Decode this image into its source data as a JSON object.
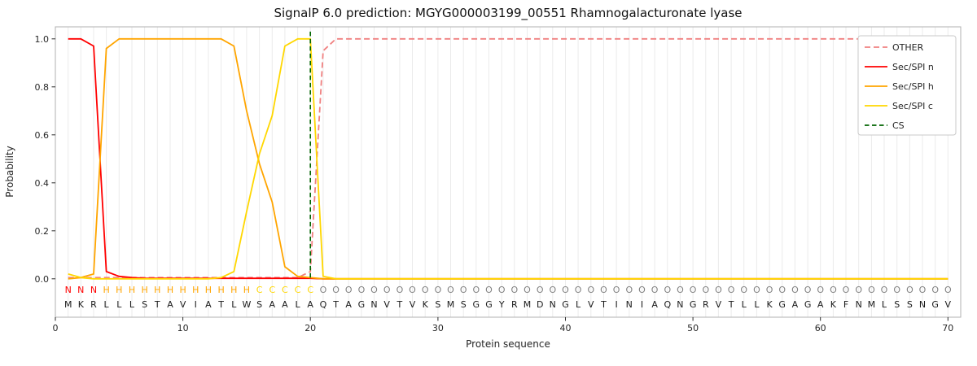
{
  "chart_data": {
    "type": "line",
    "title": "SignalP 6.0 prediction: MGYG000003199_00551 Rhamnogalacturonate lyase",
    "xlabel": "Protein sequence",
    "ylabel": "Probability",
    "xlim": [
      0,
      71
    ],
    "ylim": [
      -0.16,
      1.05
    ],
    "x_start": 1,
    "x_ticks": [
      0,
      10,
      20,
      30,
      40,
      50,
      60,
      70
    ],
    "y_ticks": [
      {
        "value": 0.0,
        "label": "0.0"
      },
      {
        "value": 0.2,
        "label": "0.2"
      },
      {
        "value": 0.4,
        "label": "0.4"
      },
      {
        "value": 0.6,
        "label": "0.6"
      },
      {
        "value": 0.8,
        "label": "0.8"
      },
      {
        "value": 1.0,
        "label": "1.0"
      }
    ],
    "grid": "vertical-line-per-residue",
    "legend_position": "upper right",
    "series": [
      {
        "name": "OTHER",
        "color": "#f08080",
        "style": "dashed",
        "values": [
          0.005,
          0.005,
          0.005,
          0.005,
          0.005,
          0.005,
          0.005,
          0.005,
          0.005,
          0.005,
          0.005,
          0.005,
          0.005,
          0.005,
          0.005,
          0.005,
          0.005,
          0.005,
          0.005,
          0.03,
          0.95,
          1.0,
          1.0,
          1.0,
          1.0,
          1.0,
          1.0,
          1.0,
          1.0,
          1.0,
          1.0,
          1.0,
          1.0,
          1.0,
          1.0,
          1.0,
          1.0,
          1.0,
          1.0,
          1.0,
          1.0,
          1.0,
          1.0,
          1.0,
          1.0,
          1.0,
          1.0,
          1.0,
          1.0,
          1.0,
          1.0,
          1.0,
          1.0,
          1.0,
          1.0,
          1.0,
          1.0,
          1.0,
          1.0,
          1.0,
          1.0,
          1.0,
          1.0,
          1.0,
          1.0,
          1.0,
          1.0,
          1.0,
          1.0,
          1.0
        ]
      },
      {
        "name": "Sec/SPI n",
        "color": "#ff0000",
        "style": "solid",
        "values": [
          1.0,
          1.0,
          0.97,
          0.03,
          0.01,
          0.005,
          0.002,
          0.002,
          0.002,
          0.002,
          0.002,
          0.002,
          0.002,
          0.002,
          0.002,
          0.002,
          0.002,
          0.002,
          0.002,
          0.002,
          0.0,
          0.0,
          0.0,
          0.0,
          0.0,
          0.0,
          0.0,
          0.0,
          0.0,
          0.0,
          0.0,
          0.0,
          0.0,
          0.0,
          0.0,
          0.0,
          0.0,
          0.0,
          0.0,
          0.0,
          0.0,
          0.0,
          0.0,
          0.0,
          0.0,
          0.0,
          0.0,
          0.0,
          0.0,
          0.0,
          0.0,
          0.0,
          0.0,
          0.0,
          0.0,
          0.0,
          0.0,
          0.0,
          0.0,
          0.0,
          0.0,
          0.0,
          0.0,
          0.0,
          0.0,
          0.0,
          0.0,
          0.0,
          0.0,
          0.0
        ]
      },
      {
        "name": "Sec/SPI h",
        "color": "#ffa500",
        "style": "solid",
        "values": [
          0.0,
          0.005,
          0.02,
          0.96,
          1.0,
          1.0,
          1.0,
          1.0,
          1.0,
          1.0,
          1.0,
          1.0,
          1.0,
          0.97,
          0.7,
          0.48,
          0.32,
          0.05,
          0.01,
          0.005,
          0.0,
          0.0,
          0.0,
          0.0,
          0.0,
          0.0,
          0.0,
          0.0,
          0.0,
          0.0,
          0.0,
          0.0,
          0.0,
          0.0,
          0.0,
          0.0,
          0.0,
          0.0,
          0.0,
          0.0,
          0.0,
          0.0,
          0.0,
          0.0,
          0.0,
          0.0,
          0.0,
          0.0,
          0.0,
          0.0,
          0.0,
          0.0,
          0.0,
          0.0,
          0.0,
          0.0,
          0.0,
          0.0,
          0.0,
          0.0,
          0.0,
          0.0,
          0.0,
          0.0,
          0.0,
          0.0,
          0.0,
          0.0,
          0.0,
          0.0
        ]
      },
      {
        "name": "Sec/SPI c",
        "color": "#ffd700",
        "style": "solid",
        "values": [
          0.02,
          0.005,
          0.0,
          0.0,
          0.0,
          0.0,
          0.0,
          0.0,
          0.0,
          0.0,
          0.0,
          0.0,
          0.005,
          0.03,
          0.28,
          0.52,
          0.68,
          0.97,
          1.0,
          1.0,
          0.01,
          0.0,
          0.0,
          0.0,
          0.0,
          0.0,
          0.0,
          0.0,
          0.0,
          0.0,
          0.0,
          0.0,
          0.0,
          0.0,
          0.0,
          0.0,
          0.0,
          0.0,
          0.0,
          0.0,
          0.0,
          0.0,
          0.0,
          0.0,
          0.0,
          0.0,
          0.0,
          0.0,
          0.0,
          0.0,
          0.0,
          0.0,
          0.0,
          0.0,
          0.0,
          0.0,
          0.0,
          0.0,
          0.0,
          0.0,
          0.0,
          0.0,
          0.0,
          0.0,
          0.0,
          0.0,
          0.0,
          0.0,
          0.0,
          0.0
        ]
      },
      {
        "name": "CS",
        "color": "#006400",
        "style": "dashed-vline",
        "position": 20
      }
    ],
    "sequence": "MKRLLLSTAVIATLWSAALAQTAGNVTVKSMSGGYRMDNGLVTINIAQNGRVTLLKGAGAKFNMLSSNGV",
    "region_labels": "NNNHHHHHHHHHHHHCCCCCOOOOOOOOOOOOOOOOOOOOOOOOOOOOOOOOOOOOOOOOOOOOOOOOOO",
    "region_colors": {
      "N": "#ff0000",
      "H": "#ffa500",
      "C": "#ffd700",
      "O": "#808080"
    },
    "sequence_color": "#1a1a1a"
  }
}
